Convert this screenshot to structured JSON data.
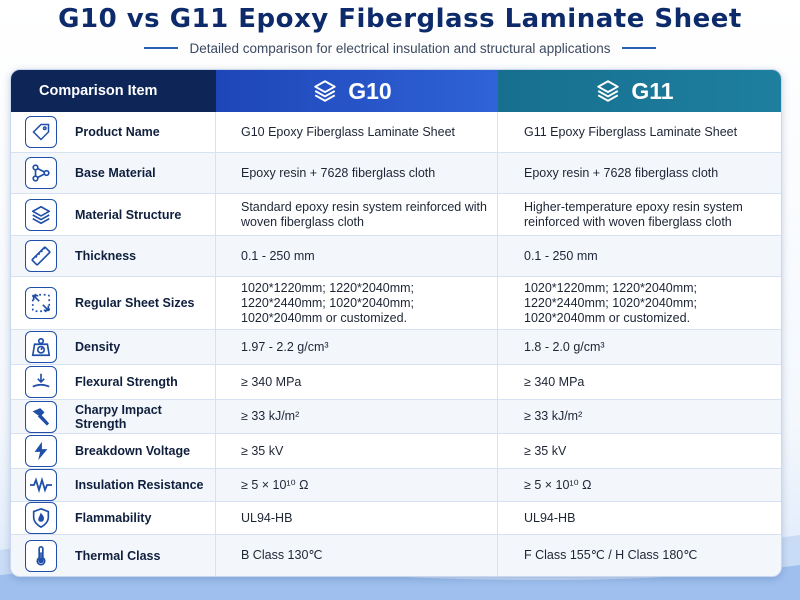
{
  "title": "G10 vs G11 Epoxy Fiberglass Laminate Sheet",
  "subtitle": "Detailed comparison for electrical insulation and structural applications",
  "header": {
    "item": "Comparison Item",
    "g10": "G10",
    "g11": "G11"
  },
  "rows": [
    {
      "icon": "tag-icon",
      "label": "Product Name",
      "g10": "G10 Epoxy Fiberglass Laminate Sheet",
      "g11": "G11 Epoxy Fiberglass Laminate Sheet"
    },
    {
      "icon": "molecule-icon",
      "label": "Base Material",
      "g10": "Epoxy resin + 7628 fiberglass cloth",
      "g11": "Epoxy resin + 7628 fiberglass cloth"
    },
    {
      "icon": "layers-icon",
      "label": "Material Structure",
      "g10": "Standard epoxy resin system reinforced with woven fiberglass cloth",
      "g11": "Higher-temperature epoxy resin system reinforced with woven fiberglass cloth"
    },
    {
      "icon": "ruler-icon",
      "label": "Thickness",
      "g10": "0.1 - 250 mm",
      "g11": "0.1 - 250 mm"
    },
    {
      "icon": "resize-icon",
      "label": "Regular Sheet Sizes",
      "g10": "1020*1220mm; 1220*2040mm; 1220*2440mm; 1020*2040mm; 1020*2040mm or customized.",
      "g11": "1020*1220mm; 1220*2040mm; 1220*2440mm; 1020*2040mm; 1020*2040mm or customized."
    },
    {
      "icon": "weight-icon",
      "label": "Density",
      "g10": "1.97 - 2.2 g/cm³",
      "g11": "1.8 - 2.0 g/cm³"
    },
    {
      "icon": "flex-arrow-icon",
      "label": "Flexural Strength",
      "g10": "≥ 340 MPa",
      "g11": "≥ 340 MPa"
    },
    {
      "icon": "hammer-icon",
      "label": "Charpy Impact Strength",
      "g10": "≥ 33 kJ/m²",
      "g11": "≥ 33 kJ/m²"
    },
    {
      "icon": "lightning-icon",
      "label": "Breakdown Voltage",
      "g10": "≥ 35 kV",
      "g11": "≥ 35 kV"
    },
    {
      "icon": "resistor-icon",
      "label": "Insulation Resistance",
      "g10": "≥ 5 × 10¹⁰ Ω",
      "g11": "≥ 5 × 10¹⁰ Ω"
    },
    {
      "icon": "flame-shield-icon",
      "label": "Flammability",
      "g10": "UL94-HB",
      "g11": "UL94-HB"
    },
    {
      "icon": "thermometer-icon",
      "label": "Thermal Class",
      "g10": "B Class 130℃",
      "g11": "F Class 155℃ / H Class 180℃"
    }
  ]
}
